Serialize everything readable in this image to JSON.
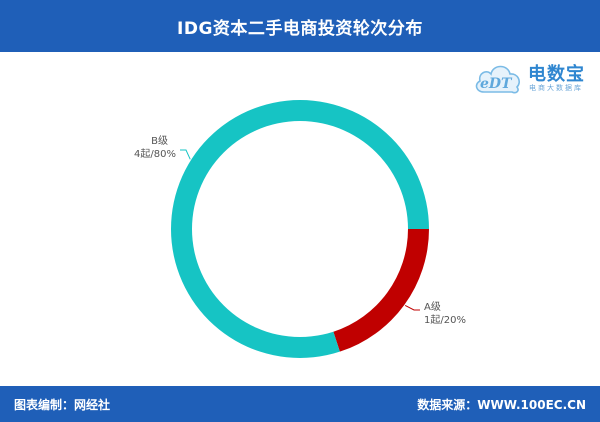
{
  "header": {
    "title": "IDG资本二手电商投资轮次分布"
  },
  "footer": {
    "left": "图表编制：网经社",
    "right": "数据来源：WWW.100EC.CN"
  },
  "logo": {
    "mark_text": "eDT",
    "name": "电数宝",
    "subtitle": "电商大数据库",
    "icon": "cloud-icon"
  },
  "colors": {
    "header_bg": "#1f5fb8",
    "series_b": "#16c4c4",
    "series_a": "#c00000"
  },
  "chart_data": {
    "type": "pie",
    "donut": true,
    "categories": [
      "A级",
      "B级"
    ],
    "values": [
      1,
      4
    ],
    "percents": [
      20,
      80
    ],
    "labels": [
      {
        "name": "A级",
        "detail": "1起/20%"
      },
      {
        "name": "B级",
        "detail": "4起/80%"
      }
    ],
    "title": "IDG资本二手电商投资轮次分布"
  }
}
